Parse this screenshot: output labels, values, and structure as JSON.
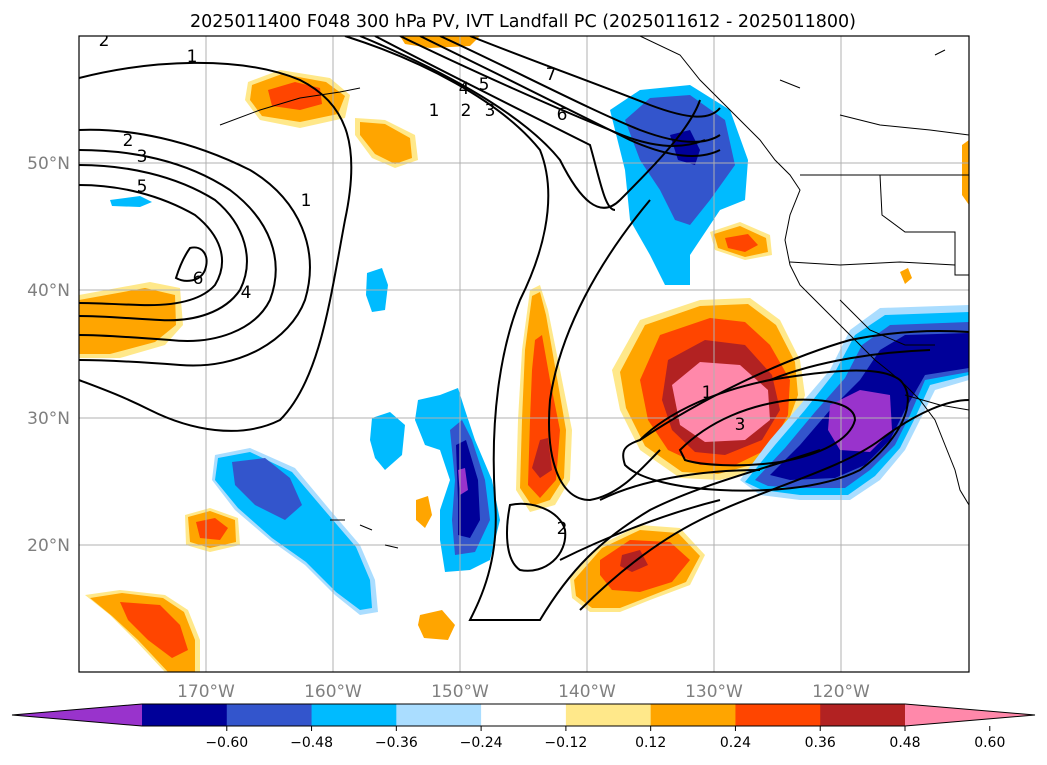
{
  "title": "2025011400 F048 300 hPa PV, IVT Landfall PC (2025011612 - 2025011800)",
  "map": {
    "lon_labels": [
      "170°W",
      "160°W",
      "150°W",
      "140°W",
      "130°W",
      "120°W"
    ],
    "lat_labels": [
      "50°N",
      "40°N",
      "30°N",
      "20°N"
    ],
    "lon_values": [
      -170,
      -160,
      -150,
      -140,
      -130,
      -120
    ],
    "lat_values": [
      50,
      40,
      30,
      20
    ],
    "extent": {
      "lon_min": -180,
      "lon_max": -110,
      "lat_min": 10,
      "lat_max": 60
    }
  },
  "colorbar": {
    "ticks": [
      "−0.60",
      "−0.48",
      "−0.36",
      "−0.24",
      "−0.12",
      "0.12",
      "0.24",
      "0.36",
      "0.48",
      "0.60"
    ],
    "levels": [
      -0.6,
      -0.48,
      -0.36,
      -0.24,
      -0.12,
      0.12,
      0.24,
      0.36,
      0.48,
      0.6
    ],
    "colors": [
      "#9933cc",
      "#000099",
      "#3355cc",
      "#00bbff",
      "#aaddff",
      "#ffffff",
      "#ffe88a",
      "#ffa500",
      "#ff4500",
      "#b22222",
      "#ff88aa"
    ],
    "extend": "both"
  },
  "contour_labels": [
    {
      "text": "2"
    },
    {
      "text": "1"
    },
    {
      "text": "2"
    },
    {
      "text": "3"
    },
    {
      "text": "5"
    },
    {
      "text": "6"
    },
    {
      "text": "4"
    },
    {
      "text": "1"
    },
    {
      "text": "4"
    },
    {
      "text": "5"
    },
    {
      "text": "1"
    },
    {
      "text": "2"
    },
    {
      "text": "3"
    },
    {
      "text": "7"
    },
    {
      "text": "6"
    },
    {
      "text": "1"
    },
    {
      "text": "3"
    },
    {
      "text": "2"
    }
  ]
}
